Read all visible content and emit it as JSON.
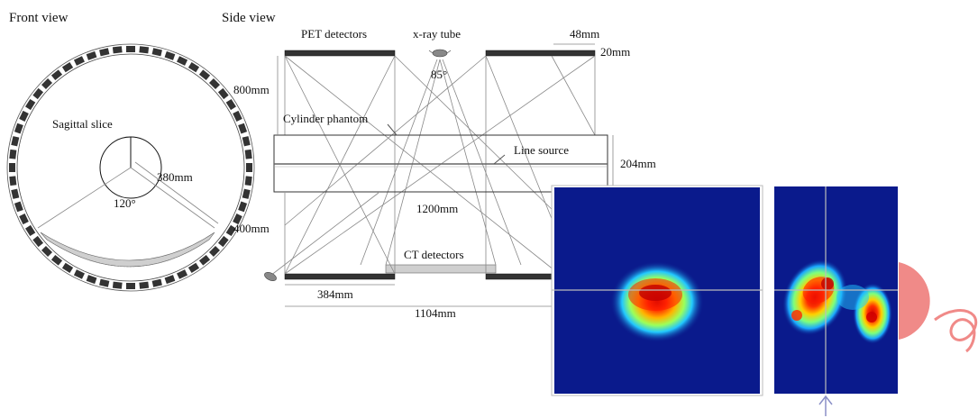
{
  "front_view": {
    "title": "Front view",
    "sagittal_label": "Sagittal slice",
    "radius_label": "380mm",
    "angle_label": "120°"
  },
  "side_view": {
    "title": "Side view",
    "pet_label": "PET detectors",
    "xray_label": "x-ray tube",
    "block_len_label": "48mm",
    "block_h_label": "20mm",
    "fan_angle_label": "85°",
    "gap_label": "800mm",
    "phantom_label": "Cylinder phantom",
    "line_source_label": "Line source",
    "phantom_d_label": "204mm",
    "phantom_len_label": "1200mm",
    "lower_label": "400mm",
    "ct_label": "CT detectors",
    "pet_len_label": "384mm",
    "total_len_label": "1104mm"
  },
  "colors": {
    "detector": "#333333",
    "image_bg": "#0a1a8c",
    "hot": "#ff1a00",
    "arrow": "#8a8fc7",
    "doodle": "#f08a88"
  },
  "icons": {
    "xray_tube": "x-ray-tube-icon",
    "up_arrow": "up-arrow-icon",
    "doodle": "pink-doodle-icon"
  }
}
